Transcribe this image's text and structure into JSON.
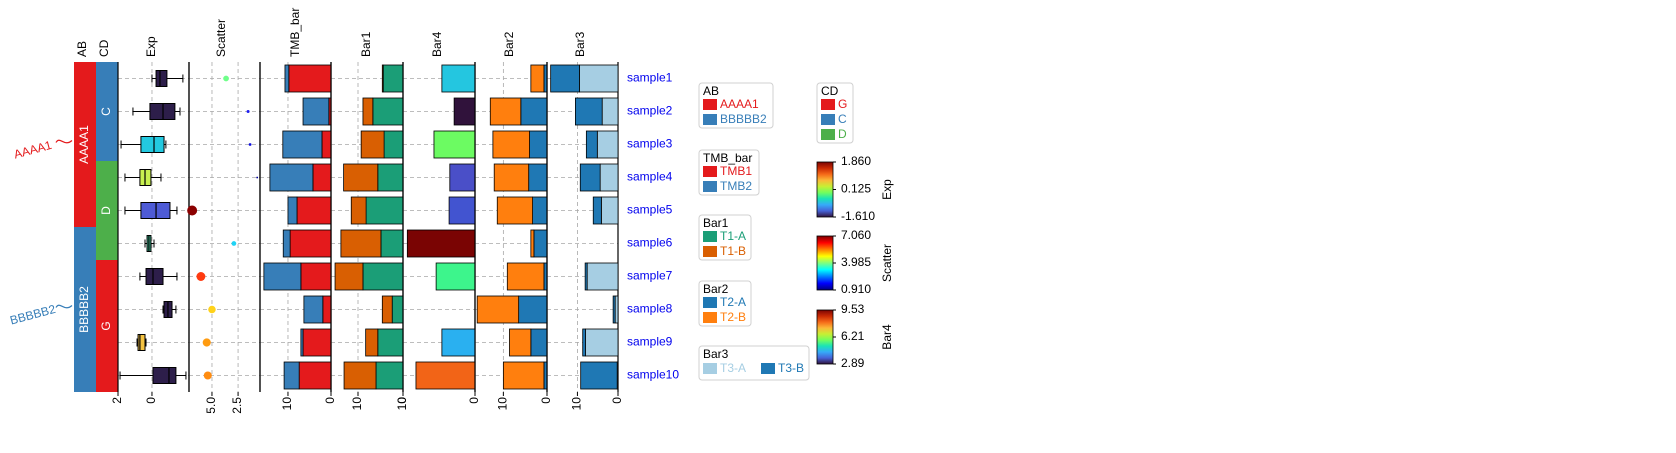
{
  "chart_data": [
    {
      "type": "category",
      "title": "AB",
      "categories": [
        "sample1",
        "sample2",
        "sample3",
        "sample4",
        "sample5",
        "sample6",
        "sample7",
        "sample8",
        "sample9",
        "sample10"
      ],
      "values": [
        "AAAA1",
        "AAAA1",
        "AAAA1",
        "AAAA1",
        "AAAA1",
        "BBBBB2",
        "BBBBB2",
        "BBBBB2",
        "BBBBB2",
        "BBBBB2"
      ],
      "palette": [
        {
          "name": "AAAA1",
          "color": "#e41a1c"
        },
        {
          "name": "BBBBB2",
          "color": "#377eb8"
        }
      ]
    },
    {
      "type": "category",
      "title": "CD",
      "values": [
        "C",
        "C",
        "C",
        "D",
        "D",
        "D",
        "G",
        "G",
        "G",
        "G"
      ],
      "palette": [
        {
          "name": "G",
          "color": "#e41a1c"
        },
        {
          "name": "C",
          "color": "#377eb8"
        },
        {
          "name": "D",
          "color": "#4daf4a"
        }
      ]
    },
    {
      "type": "box",
      "title": "Exp",
      "boxes": [
        {
          "min": -1.82,
          "q1": -0.88,
          "median": -0.47,
          "q3": -0.24,
          "max": 0
        },
        {
          "min": -1.65,
          "q1": -1.35,
          "median": -0.65,
          "q3": 0.12,
          "max": 1.12
        },
        {
          "min": -0.82,
          "q1": -0.71,
          "median": -0.12,
          "q3": 0.65,
          "max": 1.82
        },
        {
          "min": -0.53,
          "q1": 0.06,
          "median": 0.41,
          "q3": 0.71,
          "max": 1.59
        },
        {
          "min": -1.47,
          "q1": -1.06,
          "median": -0.24,
          "q3": 0.65,
          "max": 1.59
        },
        {
          "min": -0.12,
          "q1": 0.06,
          "median": 0.18,
          "q3": 0.29,
          "max": 0.41
        },
        {
          "min": -1.47,
          "q1": -0.65,
          "median": -0.06,
          "q3": 0.35,
          "max": 0.71
        },
        {
          "min": -1.41,
          "q1": -1.18,
          "median": -0.94,
          "q3": -0.71,
          "max": -0.65
        },
        {
          "min": 0.35,
          "q1": 0.41,
          "median": 0.71,
          "q3": 0.82,
          "max": 0.88
        },
        {
          "min": -2.0,
          "q1": -1.41,
          "median": -1.0,
          "q3": -0.06,
          "max": 1.88
        }
      ],
      "colors": [
        "#2d1e4a",
        "#2d1e4a",
        "#23c9e0",
        "#c8f050",
        "#4e5bd6",
        "#3bb58d",
        "#2d1e4a",
        "#2d1e4a",
        "#f5c342",
        "#2d1e4a"
      ],
      "xlim": [
        2,
        -2.18
      ],
      "xticks": [
        2,
        0
      ],
      "clim": [
        -1.61,
        1.86
      ],
      "cticks": [
        {
          "value": 1.86,
          "label": "1.860"
        },
        0.125,
        {
          "value": -1.61,
          "label": "-1.610"
        }
      ],
      "cmap": [
        "#30123b",
        "#4662d7",
        "#36aaf9",
        "#1ae4b6",
        "#72fe5e",
        "#c7ef34",
        "#fbb938",
        "#f56918",
        "#c92903",
        "#7a0403"
      ]
    },
    {
      "type": "scatter",
      "title": "Scatter",
      "values": [
        3.65,
        1.54,
        1.35,
        0.67,
        6.9,
        2.9,
        6.06,
        5.0,
        5.5,
        5.4
      ],
      "colors": [
        "#6fff8a",
        "#1e1ef0",
        "#1010e0",
        "#00009a",
        "#8b0000",
        "#1fd3f5",
        "#ff3a10",
        "#ffd21a",
        "#ff9b10",
        "#ff8c10"
      ],
      "xlim": [
        7.2,
        0.4
      ],
      "xticks": [
        {
          "value": 5,
          "label": "5.0"
        },
        2.5
      ],
      "clim": [
        0.91,
        7.06
      ],
      "cticks": [
        {
          "value": 7.06,
          "label": "7.060"
        },
        3.985,
        {
          "value": 0.91,
          "label": "0.910"
        }
      ],
      "cmap": [
        "#00007f",
        "#0000ff",
        "#007fff",
        "#00ffff",
        "#7fff7f",
        "#ffff00",
        "#ff7f00",
        "#ff0000",
        "#7f0000"
      ]
    },
    {
      "type": "bar",
      "title": "TMB_bar",
      "series": [
        {
          "name": "TMB1",
          "color": "#e41a1c",
          "values": [
            9.8,
            0.5,
            2.1,
            4.2,
            7.9,
            9.5,
            7.0,
            1.9,
            6.5,
            7.4
          ]
        },
        {
          "name": "TMB2",
          "color": "#377eb8",
          "values": [
            0.9,
            6.0,
            9.1,
            10.0,
            2.1,
            1.6,
            8.6,
            4.4,
            0.5,
            3.5
          ]
        }
      ],
      "xlim": [
        16.5,
        0
      ],
      "xticks": [
        10,
        0
      ]
    },
    {
      "type": "bar",
      "title": "Bar1",
      "series": [
        {
          "name": "T1-A",
          "color": "#1b9e77",
          "values": [
            4.4,
            6.7,
            4.2,
            5.6,
            8.2,
            4.9,
            8.9,
            2.4,
            5.6,
            6.0
          ]
        },
        {
          "name": "T1-B",
          "color": "#d95f02",
          "values": [
            0.2,
            2.2,
            5.1,
            7.6,
            3.3,
            8.9,
            6.2,
            2.2,
            2.7,
            7.1
          ]
        }
      ],
      "xlim": [
        16,
        0
      ],
      "xticks": [
        10,
        0
      ]
    },
    {
      "type": "bar",
      "title": "Bar4",
      "values": [
        4.6,
        2.9,
        5.7,
        3.5,
        3.6,
        9.4,
        5.4,
        null,
        4.6,
        8.2
      ],
      "colors": [
        "#24c6e0",
        "#30123b",
        "#6cfb62",
        "#4a4fc8",
        "#4254d0",
        "#7a0403",
        "#3df58c",
        null,
        "#2ab0f0",
        "#f26417"
      ],
      "xlim": [
        10,
        0
      ],
      "xticks": [
        10,
        0
      ],
      "clim": [
        2.89,
        9.53
      ],
      "cticks": [
        9.53,
        6.21,
        2.89
      ],
      "cmap": [
        "#30123b",
        "#4662d7",
        "#36aaf9",
        "#1ae4b6",
        "#72fe5e",
        "#c7ef34",
        "#fbb938",
        "#f56918",
        "#c92903",
        "#7a0403"
      ]
    },
    {
      "type": "bar",
      "title": "Bar2",
      "series": [
        {
          "name": "T2-A",
          "color": "#1f78b4",
          "values": [
            0.7,
            6.0,
            4.0,
            4.2,
            3.3,
            3.0,
            0.7,
            6.5,
            3.7,
            0.7
          ]
        },
        {
          "name": "T2-B",
          "color": "#ff7f0e",
          "values": [
            3.0,
            7.0,
            8.4,
            7.9,
            8.1,
            0.7,
            8.4,
            9.5,
            4.9,
            9.3
          ]
        }
      ],
      "xlim": [
        16.5,
        0
      ],
      "xticks": [
        10,
        0
      ]
    },
    {
      "type": "bar",
      "title": "Bar3",
      "series": [
        {
          "name": "T3-A",
          "color": "#a6cee3",
          "values": [
            9.5,
            3.9,
            5.1,
            4.4,
            4.1,
            0,
            7.6,
            0.7,
            8.0,
            0.2
          ]
        },
        {
          "name": "T3-B",
          "color": "#1f78b4",
          "values": [
            7.1,
            6.6,
            2.7,
            4.9,
            2.0,
            0,
            0.5,
            0.5,
            0.7,
            9.0
          ]
        }
      ],
      "xlim": [
        17.5,
        0
      ],
      "xticks": [
        10,
        0
      ]
    }
  ]
}
